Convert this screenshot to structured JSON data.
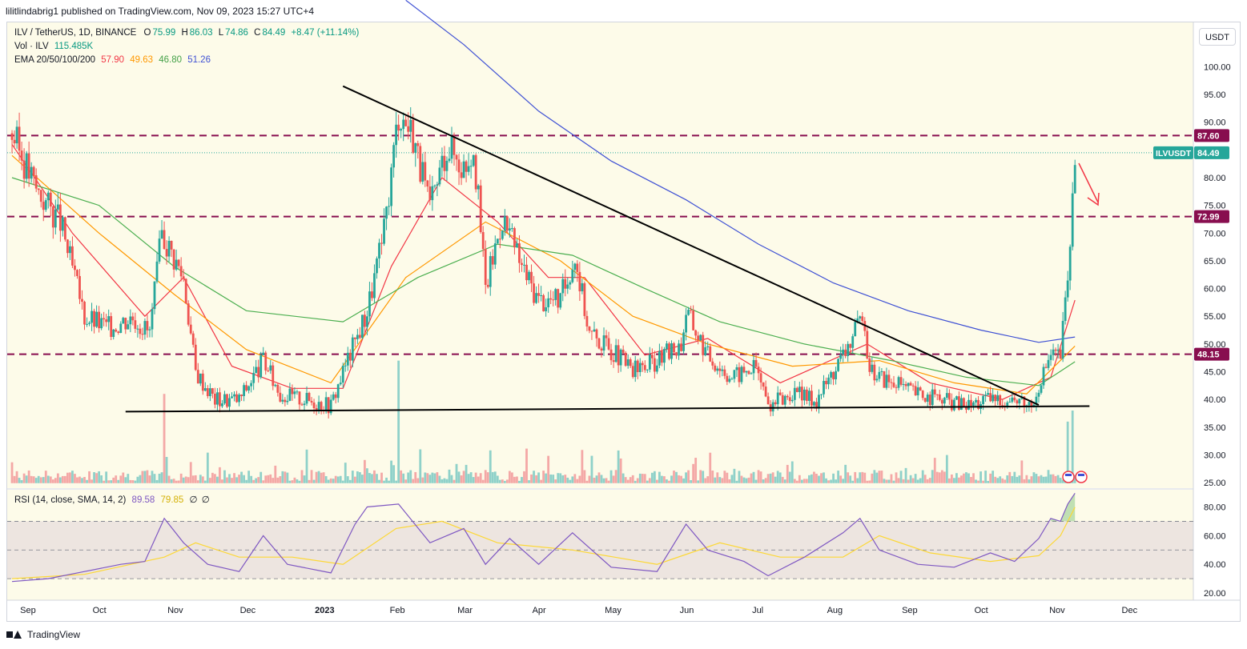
{
  "header": {
    "published": "lilitlindabrig1 published on TradingView.com, Nov 09, 2023 15:27 UTC+4"
  },
  "legend": {
    "symbol": "ILV / TetherUS, 1D, BINANCE",
    "o_label": "O",
    "o": "75.99",
    "h_label": "H",
    "h": "86.03",
    "l_label": "L",
    "l": "74.86",
    "c_label": "C",
    "c": "84.49",
    "change": "+8.47 (+11.14%)",
    "vol_label": "Vol · ILV",
    "vol": "115.485K",
    "ema_label": "EMA 20/50/100/200",
    "ema20": "57.90",
    "ema50": "49.63",
    "ema100": "46.80",
    "ema200": "51.26",
    "rsi_label": "RSI (14, close, SMA, 14, 2)",
    "rsi": "89.58",
    "rsi_sma": "79.85",
    "rsi_x1": "∅",
    "rsi_x2": "∅"
  },
  "currency_button": "USDT",
  "footer": {
    "brand": "TradingView"
  },
  "colors": {
    "up": "#26a69a",
    "down": "#ef5350",
    "ema20": "#f23645",
    "ema50": "#ff9800",
    "ema100": "#4caf50",
    "ema200": "#3f51d4",
    "level": "#880e4f",
    "rsi": "#7e57c2",
    "rsi_sma": "#fdd835",
    "background": "#fdfbe9"
  },
  "chart_data": {
    "type": "candlestick",
    "symbol": "ILVUSDT",
    "interval": "1D",
    "x_labels": [
      "Sep",
      "Oct",
      "Nov",
      "Dec",
      "2023",
      "Feb",
      "Mar",
      "Apr",
      "May",
      "Jun",
      "Jul",
      "Aug",
      "Sep",
      "Oct",
      "Nov",
      "Dec"
    ],
    "y_ticks": [
      25,
      30,
      35,
      40,
      45,
      50,
      55,
      60,
      65,
      70,
      75,
      80,
      85,
      90,
      95,
      100
    ],
    "ylim": [
      24,
      108
    ],
    "last_price": 84.49,
    "last_price_label": "ILVUSDT",
    "horizontal_levels": [
      {
        "label": "87.60",
        "value": 87.6
      },
      {
        "label": "72.99",
        "value": 72.99
      },
      {
        "label": "48.15",
        "value": 48.15
      }
    ],
    "trendlines": [
      {
        "name": "descending resistance",
        "from": [
          "2023-01-10",
          96.5
        ],
        "to": [
          "2023-10-25",
          39.0
        ]
      },
      {
        "name": "flat support",
        "from": [
          "2022-10-12",
          37.8
        ],
        "to": [
          "2023-11-15",
          38.8
        ]
      }
    ],
    "series": [
      {
        "name": "close (approx)",
        "points": [
          [
            "2022-08-26",
            88
          ],
          [
            "2022-09-05",
            78
          ],
          [
            "2022-09-15",
            72
          ],
          [
            "2022-09-25",
            55
          ],
          [
            "2022-10-05",
            53
          ],
          [
            "2022-10-15",
            55
          ],
          [
            "2022-10-22",
            52
          ],
          [
            "2022-10-27",
            70
          ],
          [
            "2022-11-05",
            62
          ],
          [
            "2022-11-10",
            45
          ],
          [
            "2022-11-18",
            40
          ],
          [
            "2022-11-28",
            40
          ],
          [
            "2022-12-08",
            47
          ],
          [
            "2022-12-15",
            41
          ],
          [
            "2022-12-25",
            40
          ],
          [
            "2023-01-05",
            39
          ],
          [
            "2023-01-10",
            45
          ],
          [
            "2023-01-20",
            56
          ],
          [
            "2023-01-27",
            70
          ],
          [
            "2023-02-02",
            92
          ],
          [
            "2023-02-08",
            88
          ],
          [
            "2023-02-15",
            74
          ],
          [
            "2023-02-22",
            86
          ],
          [
            "2023-03-01",
            82
          ],
          [
            "2023-03-05",
            86
          ],
          [
            "2023-03-10",
            60
          ],
          [
            "2023-03-17",
            73
          ],
          [
            "2023-03-25",
            64
          ],
          [
            "2023-04-01",
            58
          ],
          [
            "2023-04-10",
            58
          ],
          [
            "2023-04-16",
            66
          ],
          [
            "2023-04-22",
            52
          ],
          [
            "2023-05-01",
            49
          ],
          [
            "2023-05-10",
            45
          ],
          [
            "2023-05-20",
            47
          ],
          [
            "2023-05-30",
            50
          ],
          [
            "2023-06-01",
            56
          ],
          [
            "2023-06-10",
            48
          ],
          [
            "2023-06-20",
            44
          ],
          [
            "2023-06-30",
            46
          ],
          [
            "2023-07-05",
            39
          ],
          [
            "2023-07-15",
            41
          ],
          [
            "2023-07-25",
            40
          ],
          [
            "2023-08-05",
            48
          ],
          [
            "2023-08-12",
            54
          ],
          [
            "2023-08-17",
            45
          ],
          [
            "2023-08-25",
            43
          ],
          [
            "2023-09-05",
            41
          ],
          [
            "2023-09-15",
            40
          ],
          [
            "2023-09-25",
            39
          ],
          [
            "2023-10-05",
            40
          ],
          [
            "2023-10-15",
            40
          ],
          [
            "2023-10-22",
            39
          ],
          [
            "2023-10-26",
            44
          ],
          [
            "2023-10-30",
            48
          ],
          [
            "2023-11-03",
            48
          ],
          [
            "2023-11-06",
            62
          ],
          [
            "2023-11-08",
            76
          ],
          [
            "2023-11-09",
            84.49
          ]
        ]
      },
      {
        "name": "EMA 20",
        "points": [
          [
            "2022-08-26",
            86
          ],
          [
            "2022-09-20",
            70
          ],
          [
            "2022-10-20",
            55
          ],
          [
            "2022-11-05",
            62
          ],
          [
            "2022-11-25",
            46
          ],
          [
            "2022-12-20",
            42
          ],
          [
            "2023-01-10",
            42
          ],
          [
            "2023-01-30",
            64
          ],
          [
            "2023-02-20",
            80
          ],
          [
            "2023-03-15",
            72
          ],
          [
            "2023-04-05",
            62
          ],
          [
            "2023-04-20",
            62
          ],
          [
            "2023-05-15",
            48
          ],
          [
            "2023-06-10",
            51
          ],
          [
            "2023-07-10",
            43
          ],
          [
            "2023-08-15",
            50
          ],
          [
            "2023-09-10",
            43
          ],
          [
            "2023-10-10",
            40
          ],
          [
            "2023-10-30",
            44
          ],
          [
            "2023-11-09",
            57.9
          ]
        ]
      },
      {
        "name": "EMA 50",
        "points": [
          [
            "2022-08-26",
            84
          ],
          [
            "2022-10-01",
            70
          ],
          [
            "2022-11-01",
            59
          ],
          [
            "2022-12-01",
            49
          ],
          [
            "2023-01-05",
            43
          ],
          [
            "2023-02-05",
            62
          ],
          [
            "2023-03-10",
            72
          ],
          [
            "2023-04-10",
            65
          ],
          [
            "2023-05-10",
            55
          ],
          [
            "2023-06-10",
            50
          ],
          [
            "2023-07-15",
            46
          ],
          [
            "2023-08-20",
            47
          ],
          [
            "2023-09-20",
            43
          ],
          [
            "2023-10-20",
            41
          ],
          [
            "2023-11-09",
            49.63
          ]
        ]
      },
      {
        "name": "EMA 100",
        "points": [
          [
            "2022-08-26",
            80
          ],
          [
            "2022-10-01",
            75
          ],
          [
            "2022-11-01",
            64
          ],
          [
            "2022-12-01",
            56
          ],
          [
            "2023-01-10",
            54
          ],
          [
            "2023-02-10",
            62
          ],
          [
            "2023-03-15",
            68
          ],
          [
            "2023-04-15",
            66
          ],
          [
            "2023-05-15",
            60
          ],
          [
            "2023-06-15",
            54
          ],
          [
            "2023-07-20",
            50
          ],
          [
            "2023-08-25",
            47
          ],
          [
            "2023-09-25",
            44
          ],
          [
            "2023-10-25",
            42.5
          ],
          [
            "2023-11-09",
            46.8
          ]
        ]
      },
      {
        "name": "EMA 200",
        "points": [
          [
            "2023-02-05",
            112
          ],
          [
            "2023-03-01",
            104
          ],
          [
            "2023-04-01",
            92
          ],
          [
            "2023-05-01",
            83
          ],
          [
            "2023-06-01",
            76
          ],
          [
            "2023-07-01",
            68
          ],
          [
            "2023-08-01",
            61
          ],
          [
            "2023-09-01",
            56
          ],
          [
            "2023-10-01",
            52.5
          ],
          [
            "2023-10-25",
            50.3
          ],
          [
            "2023-11-09",
            51.26
          ]
        ]
      }
    ],
    "volume": {
      "name": "Vol · ILV",
      "last": "115.485K",
      "spikes": [
        [
          "2022-10-28",
          41
        ],
        [
          "2023-02-02",
          47
        ],
        [
          "2023-11-06",
          36
        ],
        [
          "2023-11-08",
          38
        ]
      ]
    },
    "rsi": {
      "name": "RSI (14, close, SMA, 14, 2)",
      "y_ticks": [
        20,
        40,
        60,
        80
      ],
      "ylim": [
        15,
        92
      ],
      "band": [
        30,
        70
      ],
      "midline": 50,
      "points": [
        [
          "2022-08-26",
          28
        ],
        [
          "2022-09-10",
          30
        ],
        [
          "2022-09-25",
          35
        ],
        [
          "2022-10-10",
          40
        ],
        [
          "2022-10-20",
          42
        ],
        [
          "2022-10-28",
          72
        ],
        [
          "2022-11-05",
          55
        ],
        [
          "2022-11-15",
          40
        ],
        [
          "2022-11-28",
          35
        ],
        [
          "2022-12-08",
          60
        ],
        [
          "2022-12-18",
          40
        ],
        [
          "2023-01-05",
          34
        ],
        [
          "2023-01-15",
          68
        ],
        [
          "2023-01-20",
          80
        ],
        [
          "2023-02-02",
          82
        ],
        [
          "2023-02-15",
          55
        ],
        [
          "2023-03-01",
          65
        ],
        [
          "2023-03-10",
          40
        ],
        [
          "2023-03-20",
          58
        ],
        [
          "2023-04-01",
          40
        ],
        [
          "2023-04-15",
          62
        ],
        [
          "2023-05-01",
          38
        ],
        [
          "2023-05-20",
          35
        ],
        [
          "2023-06-01",
          68
        ],
        [
          "2023-06-10",
          50
        ],
        [
          "2023-06-25",
          42
        ],
        [
          "2023-07-05",
          32
        ],
        [
          "2023-07-20",
          45
        ],
        [
          "2023-08-05",
          62
        ],
        [
          "2023-08-12",
          72
        ],
        [
          "2023-08-20",
          50
        ],
        [
          "2023-09-05",
          40
        ],
        [
          "2023-09-20",
          38
        ],
        [
          "2023-10-05",
          48
        ],
        [
          "2023-10-15",
          42
        ],
        [
          "2023-10-25",
          58
        ],
        [
          "2023-10-30",
          72
        ],
        [
          "2023-11-03",
          70
        ],
        [
          "2023-11-06",
          82
        ],
        [
          "2023-11-09",
          89.58
        ]
      ],
      "sma_points": [
        [
          "2022-08-26",
          30
        ],
        [
          "2022-09-25",
          33
        ],
        [
          "2022-10-28",
          45
        ],
        [
          "2022-11-10",
          55
        ],
        [
          "2022-11-28",
          45
        ],
        [
          "2022-12-20",
          45
        ],
        [
          "2023-01-10",
          40
        ],
        [
          "2023-02-01",
          65
        ],
        [
          "2023-02-20",
          70
        ],
        [
          "2023-03-15",
          55
        ],
        [
          "2023-04-15",
          50
        ],
        [
          "2023-05-20",
          40
        ],
        [
          "2023-06-15",
          55
        ],
        [
          "2023-07-10",
          45
        ],
        [
          "2023-08-05",
          45
        ],
        [
          "2023-08-20",
          60
        ],
        [
          "2023-09-10",
          48
        ],
        [
          "2023-10-05",
          42
        ],
        [
          "2023-10-25",
          46
        ],
        [
          "2023-11-03",
          60
        ],
        [
          "2023-11-09",
          79.85
        ]
      ]
    }
  }
}
